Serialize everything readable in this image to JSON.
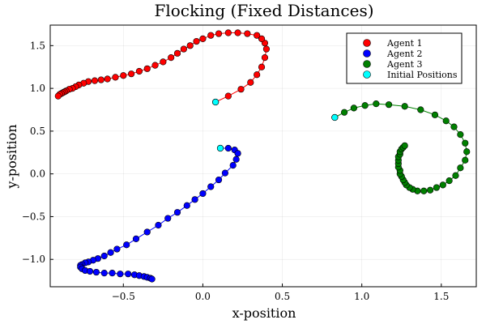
{
  "chart_data": {
    "type": "scatter",
    "title": "Flocking (Fixed Distances)",
    "xlabel": "x-position",
    "ylabel": "y-position",
    "xlim": [
      -0.96,
      1.72
    ],
    "ylim": [
      -1.32,
      1.74
    ],
    "xticks": [
      -0.5,
      0.0,
      0.5,
      1.0,
      1.5
    ],
    "xtick_labels": [
      "−0.5",
      "0.0",
      "0.5",
      "1.0",
      "1.5"
    ],
    "yticks": [
      -1.0,
      -0.5,
      0.0,
      0.5,
      1.0,
      1.5
    ],
    "ytick_labels": [
      "−1.0",
      "−0.5",
      "0.0",
      "0.5",
      "1.0",
      "1.5"
    ],
    "grid": true,
    "legend_position": "top-right",
    "legend": [
      "Agent 1",
      "Agent 2",
      "Agent 3",
      "Initial Positions"
    ],
    "series": [
      {
        "name": "Agent 1",
        "color": "#ff0000",
        "x": [
          0.08,
          0.16,
          0.24,
          0.3,
          0.34,
          0.37,
          0.39,
          0.4,
          0.39,
          0.37,
          0.34,
          0.28,
          0.22,
          0.16,
          0.1,
          0.05,
          0.0,
          -0.04,
          -0.08,
          -0.12,
          -0.16,
          -0.2,
          -0.25,
          -0.3,
          -0.35,
          -0.4,
          -0.45,
          -0.5,
          -0.55,
          -0.6,
          -0.64,
          -0.68,
          -0.72,
          -0.75,
          -0.78,
          -0.8,
          -0.82,
          -0.84,
          -0.86,
          -0.87,
          -0.88,
          -0.89,
          -0.9,
          -0.91
        ],
        "y": [
          0.84,
          0.91,
          0.99,
          1.07,
          1.16,
          1.25,
          1.36,
          1.46,
          1.53,
          1.58,
          1.62,
          1.64,
          1.65,
          1.65,
          1.64,
          1.62,
          1.58,
          1.55,
          1.5,
          1.46,
          1.41,
          1.36,
          1.31,
          1.27,
          1.23,
          1.2,
          1.17,
          1.15,
          1.13,
          1.11,
          1.1,
          1.09,
          1.08,
          1.06,
          1.04,
          1.02,
          1.0,
          0.99,
          0.97,
          0.96,
          0.95,
          0.94,
          0.93,
          0.91
        ]
      },
      {
        "name": "Agent 2",
        "color": "#0000ff",
        "x": [
          0.11,
          0.16,
          0.2,
          0.22,
          0.21,
          0.19,
          0.14,
          0.1,
          0.05,
          0.0,
          -0.05,
          -0.1,
          -0.16,
          -0.22,
          -0.28,
          -0.35,
          -0.42,
          -0.48,
          -0.54,
          -0.58,
          -0.62,
          -0.66,
          -0.69,
          -0.72,
          -0.74,
          -0.76,
          -0.77,
          -0.77,
          -0.76,
          -0.74,
          -0.71,
          -0.67,
          -0.62,
          -0.57,
          -0.52,
          -0.47,
          -0.43,
          -0.4,
          -0.37,
          -0.35,
          -0.33,
          -0.32
        ],
        "y": [
          0.3,
          0.3,
          0.28,
          0.24,
          0.17,
          0.1,
          0.01,
          -0.07,
          -0.15,
          -0.23,
          -0.3,
          -0.37,
          -0.45,
          -0.52,
          -0.6,
          -0.68,
          -0.76,
          -0.83,
          -0.88,
          -0.92,
          -0.96,
          -0.99,
          -1.01,
          -1.03,
          -1.04,
          -1.06,
          -1.07,
          -1.09,
          -1.11,
          -1.13,
          -1.14,
          -1.15,
          -1.16,
          -1.16,
          -1.17,
          -1.17,
          -1.18,
          -1.19,
          -1.2,
          -1.21,
          -1.22,
          -1.23
        ]
      },
      {
        "name": "Agent 3",
        "color": "#008000",
        "x": [
          0.83,
          0.89,
          0.95,
          1.02,
          1.09,
          1.17,
          1.27,
          1.37,
          1.46,
          1.53,
          1.58,
          1.62,
          1.65,
          1.66,
          1.65,
          1.62,
          1.59,
          1.55,
          1.51,
          1.47,
          1.43,
          1.39,
          1.35,
          1.32,
          1.3,
          1.28,
          1.27,
          1.26,
          1.25,
          1.24,
          1.24,
          1.23,
          1.23,
          1.23,
          1.23,
          1.24,
          1.24,
          1.25,
          1.26,
          1.27
        ],
        "y": [
          0.66,
          0.72,
          0.77,
          0.8,
          0.82,
          0.81,
          0.79,
          0.75,
          0.69,
          0.62,
          0.55,
          0.46,
          0.36,
          0.26,
          0.16,
          0.07,
          -0.02,
          -0.08,
          -0.13,
          -0.16,
          -0.19,
          -0.2,
          -0.2,
          -0.18,
          -0.16,
          -0.13,
          -0.1,
          -0.07,
          -0.03,
          0.0,
          0.04,
          0.08,
          0.12,
          0.16,
          0.2,
          0.23,
          0.26,
          0.29,
          0.31,
          0.33
        ]
      },
      {
        "name": "Initial Positions",
        "color": "#00ffff",
        "x": [
          0.08,
          0.11,
          0.83
        ],
        "y": [
          0.84,
          0.3,
          0.66
        ]
      }
    ]
  }
}
